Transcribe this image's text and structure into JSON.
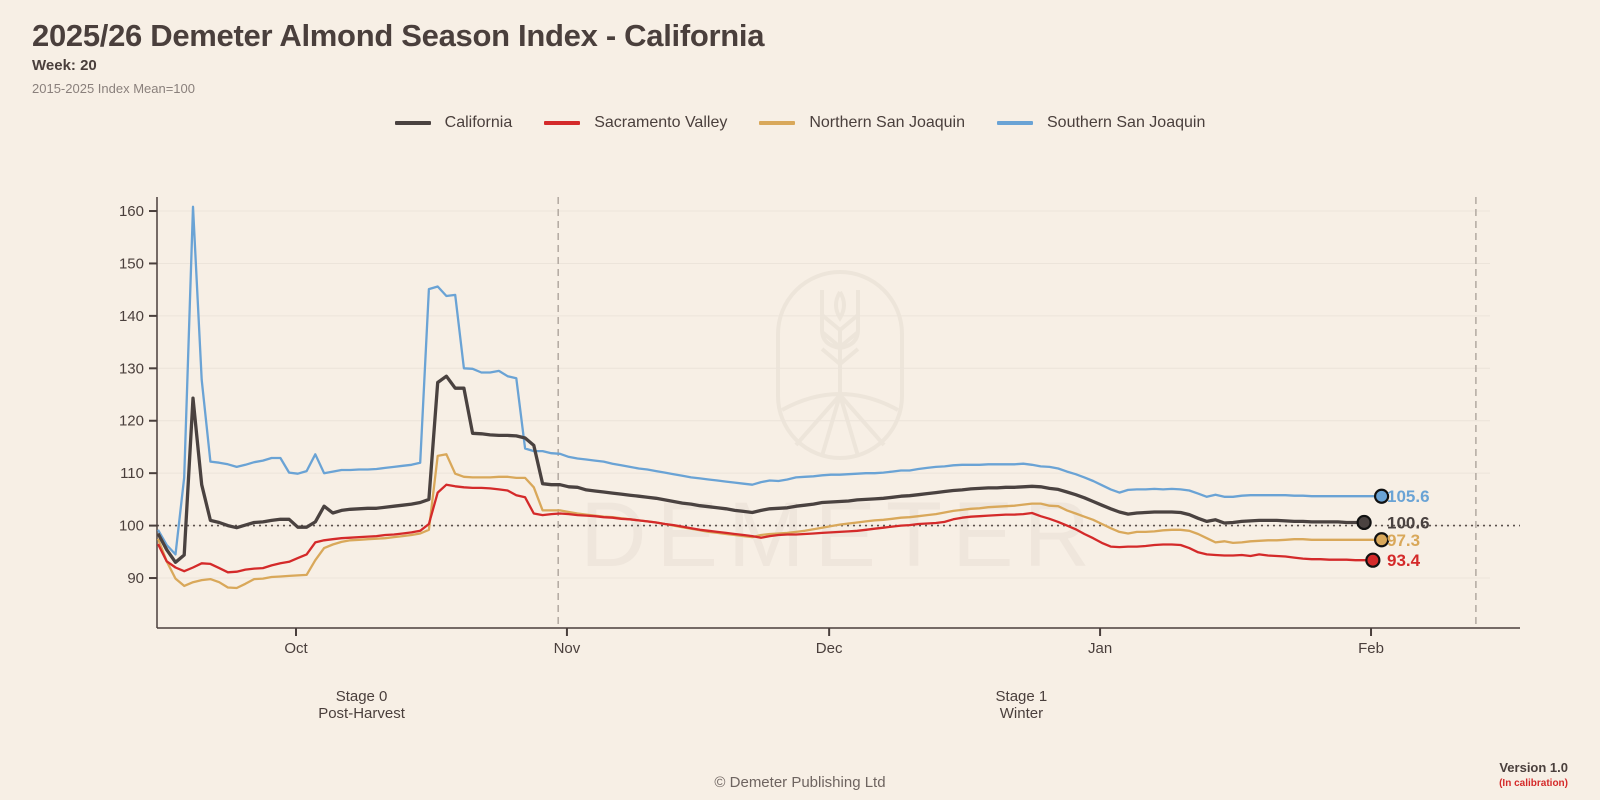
{
  "header": {
    "title": "2025/26 Demeter Almond Season Index - California",
    "week": "Week: 20",
    "baseline_note": "2015-2025 Index Mean=100"
  },
  "watermark": {
    "text": "DEMETER",
    "logo": "wheat-logo-icon"
  },
  "footer": {
    "copyright": "© Demeter Publishing Ltd",
    "version": "Version 1.0",
    "status": "(In calibration)"
  },
  "chart_data": {
    "type": "line",
    "title": "2025/26 Demeter Almond Season Index - California",
    "xlabel": "",
    "ylabel": "",
    "x_start": "Sep 15",
    "x_unit": "day",
    "ylim": [
      81,
      163
    ],
    "yticks": [
      90,
      100,
      110,
      120,
      130,
      140,
      150,
      160
    ],
    "xticks": [
      {
        "label": "Oct",
        "day": 16
      },
      {
        "label": "Nov",
        "day": 47
      },
      {
        "label": "Dec",
        "day": 77
      },
      {
        "label": "Jan",
        "day": 108
      },
      {
        "label": "Feb",
        "day": 139
      }
    ],
    "x_range_days": [
      0,
      153
    ],
    "reference_line": {
      "value": 100,
      "style": "dotted"
    },
    "stage_boundaries": [
      {
        "day": 46
      },
      {
        "day": 151
      }
    ],
    "stages": [
      {
        "line1": "Stage 0",
        "line2": "Post-Harvest",
        "day": 23.5
      },
      {
        "line1": "Stage 1",
        "line2": "Winter",
        "day": 99
      }
    ],
    "grid": true,
    "legend_position": "top-center",
    "series": [
      {
        "name": "California",
        "color": "#4a4240",
        "width": 3,
        "final_label": "100.6",
        "values": [
          98.5,
          95.4,
          93.0,
          94.4,
          124.3,
          107.8,
          101.0,
          100.6,
          100.0,
          99.6,
          100.1,
          100.6,
          100.7,
          101.0,
          101.2,
          101.2,
          99.7,
          99.7,
          100.7,
          103.7,
          102.4,
          102.9,
          103.1,
          103.2,
          103.3,
          103.3,
          103.5,
          103.7,
          103.9,
          104.1,
          104.4,
          105.0,
          127.3,
          128.5,
          126.2,
          126.2,
          117.6,
          117.5,
          117.3,
          117.2,
          117.2,
          117.1,
          116.7,
          115.3,
          108.0,
          107.8,
          107.8,
          107.4,
          107.3,
          106.8,
          106.6,
          106.4,
          106.2,
          106.0,
          105.8,
          105.6,
          105.4,
          105.2,
          104.9,
          104.6,
          104.3,
          104.1,
          103.8,
          103.6,
          103.4,
          103.2,
          102.9,
          102.7,
          102.5,
          102.9,
          103.2,
          103.3,
          103.4,
          103.7,
          103.9,
          104.1,
          104.4,
          104.5,
          104.6,
          104.7,
          104.9,
          105.0,
          105.1,
          105.2,
          105.4,
          105.6,
          105.7,
          105.9,
          106.1,
          106.3,
          106.5,
          106.7,
          106.8,
          107.0,
          107.1,
          107.2,
          107.2,
          107.3,
          107.3,
          107.4,
          107.5,
          107.4,
          107.1,
          106.9,
          106.4,
          105.9,
          105.3,
          104.6,
          103.9,
          103.2,
          102.6,
          102.2,
          102.4,
          102.5,
          102.6,
          102.6,
          102.6,
          102.5,
          102.1,
          101.4,
          100.8,
          101.1,
          100.5,
          100.6,
          100.8,
          100.9,
          101.0,
          101.0,
          101.0,
          100.9,
          100.8,
          100.8,
          100.7,
          100.7,
          100.7,
          100.7,
          100.6,
          100.6,
          100.6
        ]
      },
      {
        "name": "Sacramento Valley",
        "color": "#d42a2a",
        "width": 2,
        "final_label": "93.4",
        "values": [
          96.5,
          93.2,
          92.0,
          91.3,
          92.0,
          92.8,
          92.7,
          91.9,
          91.1,
          91.2,
          91.6,
          91.8,
          91.9,
          92.4,
          92.8,
          93.1,
          93.8,
          94.5,
          96.8,
          97.2,
          97.4,
          97.6,
          97.7,
          97.8,
          97.9,
          98.0,
          98.2,
          98.3,
          98.5,
          98.7,
          99.0,
          100.3,
          106.3,
          107.8,
          107.5,
          107.3,
          107.2,
          107.2,
          107.1,
          106.9,
          106.7,
          105.8,
          105.4,
          102.3,
          102.0,
          102.2,
          102.3,
          102.2,
          102.0,
          101.9,
          101.8,
          101.6,
          101.5,
          101.3,
          101.2,
          101.0,
          100.8,
          100.6,
          100.3,
          100.1,
          99.8,
          99.5,
          99.2,
          99.0,
          98.8,
          98.6,
          98.4,
          98.2,
          98.0,
          97.7,
          98.0,
          98.2,
          98.3,
          98.3,
          98.4,
          98.5,
          98.6,
          98.7,
          98.8,
          98.9,
          99.0,
          99.2,
          99.4,
          99.6,
          99.8,
          100.0,
          100.1,
          100.3,
          100.4,
          100.5,
          100.7,
          101.2,
          101.5,
          101.7,
          101.8,
          101.9,
          102.0,
          102.1,
          102.1,
          102.2,
          102.4,
          101.8,
          101.3,
          100.7,
          100.0,
          99.3,
          98.4,
          97.6,
          96.7,
          96.0,
          95.9,
          96.0,
          96.0,
          96.1,
          96.3,
          96.4,
          96.4,
          96.3,
          95.7,
          94.9,
          94.5,
          94.4,
          94.3,
          94.3,
          94.4,
          94.2,
          94.5,
          94.3,
          94.2,
          94.1,
          93.9,
          93.7,
          93.6,
          93.6,
          93.5,
          93.5,
          93.5,
          93.4,
          93.4,
          93.4
        ]
      },
      {
        "name": "Northern San Joaquin",
        "color": "#d9a85a",
        "width": 2,
        "final_label": "97.3",
        "values": [
          97.5,
          93.2,
          89.9,
          88.5,
          89.2,
          89.6,
          89.8,
          89.2,
          88.2,
          88.1,
          88.9,
          89.8,
          89.9,
          90.2,
          90.3,
          90.4,
          90.5,
          90.6,
          93.4,
          95.7,
          96.4,
          96.9,
          97.2,
          97.3,
          97.4,
          97.5,
          97.6,
          97.8,
          98.0,
          98.2,
          98.5,
          99.2,
          113.3,
          113.6,
          109.9,
          109.3,
          109.2,
          109.2,
          109.2,
          109.3,
          109.3,
          109.1,
          109.1,
          107.3,
          102.9,
          102.9,
          102.9,
          102.6,
          102.3,
          102.1,
          101.9,
          101.7,
          101.6,
          101.4,
          101.2,
          101.0,
          100.8,
          100.6,
          100.3,
          100.0,
          99.7,
          99.4,
          99.1,
          98.8,
          98.6,
          98.4,
          98.2,
          98.0,
          97.8,
          98.2,
          98.4,
          98.5,
          98.6,
          98.8,
          99.0,
          99.3,
          99.6,
          99.9,
          100.2,
          100.4,
          100.6,
          100.8,
          101.0,
          101.1,
          101.3,
          101.5,
          101.6,
          101.8,
          102.0,
          102.2,
          102.5,
          102.8,
          103.0,
          103.2,
          103.3,
          103.5,
          103.6,
          103.7,
          103.8,
          104.0,
          104.2,
          104.2,
          103.8,
          103.7,
          102.9,
          102.3,
          101.7,
          101.1,
          100.3,
          99.5,
          98.8,
          98.5,
          98.8,
          98.8,
          98.9,
          99.1,
          99.2,
          99.2,
          99.0,
          98.4,
          97.6,
          96.8,
          97.0,
          96.7,
          96.8,
          97.0,
          97.1,
          97.2,
          97.2,
          97.3,
          97.4,
          97.4,
          97.3,
          97.3,
          97.3,
          97.3,
          97.3,
          97.3,
          97.3,
          97.3,
          97.3
        ]
      },
      {
        "name": "Southern San Joaquin",
        "color": "#6aa3d5",
        "width": 2,
        "final_label": "105.6",
        "values": [
          99.2,
          96.3,
          94.5,
          109.2,
          160.8,
          127.8,
          112.2,
          112.0,
          111.7,
          111.2,
          111.6,
          112.1,
          112.4,
          112.9,
          112.9,
          110.1,
          109.9,
          110.4,
          113.6,
          110.0,
          110.3,
          110.6,
          110.6,
          110.7,
          110.7,
          110.8,
          111.0,
          111.2,
          111.4,
          111.6,
          112.0,
          145.1,
          145.6,
          143.8,
          144.0,
          130.0,
          129.9,
          129.2,
          129.2,
          129.5,
          128.5,
          128.1,
          114.7,
          114.2,
          114.2,
          113.8,
          113.7,
          113.1,
          112.8,
          112.6,
          112.4,
          112.2,
          111.8,
          111.5,
          111.2,
          110.9,
          110.7,
          110.4,
          110.1,
          109.8,
          109.5,
          109.2,
          109.0,
          108.8,
          108.6,
          108.4,
          108.2,
          108.0,
          107.8,
          108.3,
          108.6,
          108.5,
          108.8,
          109.2,
          109.3,
          109.4,
          109.6,
          109.7,
          109.7,
          109.8,
          109.9,
          110.0,
          110.0,
          110.1,
          110.3,
          110.5,
          110.5,
          110.8,
          111.0,
          111.2,
          111.3,
          111.5,
          111.6,
          111.6,
          111.6,
          111.7,
          111.7,
          111.7,
          111.7,
          111.8,
          111.6,
          111.3,
          111.2,
          110.9,
          110.3,
          109.8,
          109.2,
          108.5,
          107.7,
          106.9,
          106.3,
          106.8,
          106.9,
          106.9,
          107.0,
          106.9,
          107.0,
          106.9,
          106.7,
          106.1,
          105.5,
          105.9,
          105.5,
          105.5,
          105.7,
          105.8,
          105.8,
          105.8,
          105.8,
          105.8,
          105.7,
          105.7,
          105.6,
          105.6,
          105.6,
          105.6,
          105.6,
          105.6,
          105.6,
          105.6,
          105.6
        ]
      }
    ]
  }
}
